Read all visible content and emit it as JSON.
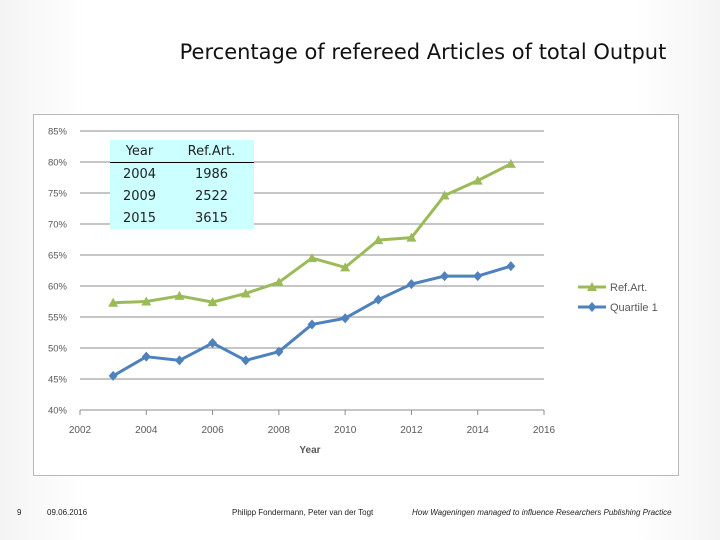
{
  "slide": {
    "title": "Percentage of refereed Articles of total Output",
    "footer": {
      "page": "9",
      "date": "09.06.2016",
      "authors": "Philipp Fondermann, Peter van der Togt",
      "talk": "How Wageningen managed to influence Researchers Publishing Practice"
    }
  },
  "table": {
    "headers": [
      "Year",
      "Ref.Art."
    ],
    "rows": [
      [
        "2004",
        "1986"
      ],
      [
        "2009",
        "2522"
      ],
      [
        "2015",
        "3615"
      ]
    ],
    "background": "#ccffff"
  },
  "chart_data": {
    "type": "line",
    "xlabel": "Year",
    "ylabel": "",
    "xlim": [
      2002,
      2016
    ],
    "ylim": [
      0.4,
      0.85
    ],
    "x_ticks": [
      "2002",
      "2004",
      "2006",
      "2008",
      "2010",
      "2012",
      "2014",
      "2016"
    ],
    "x_tick_values": [
      2002,
      2004,
      2006,
      2008,
      2010,
      2012,
      2014,
      2016
    ],
    "y_ticks": [
      "40%",
      "45%",
      "50%",
      "55%",
      "60%",
      "65%",
      "70%",
      "75%",
      "80%",
      "85%"
    ],
    "y_tick_values": [
      0.4,
      0.45,
      0.5,
      0.55,
      0.6,
      0.65,
      0.7,
      0.75,
      0.8,
      0.85
    ],
    "grid": "horizontal",
    "legend_position": "right",
    "series": [
      {
        "name": "Ref.Art.",
        "color": "#9bbb59",
        "marker": "triangle",
        "x": [
          2003,
          2004,
          2005,
          2006,
          2007,
          2008,
          2009,
          2010,
          2011,
          2012,
          2013,
          2014,
          2015
        ],
        "y": [
          0.573,
          0.575,
          0.584,
          0.574,
          0.588,
          0.606,
          0.645,
          0.63,
          0.674,
          0.678,
          0.746,
          0.77,
          0.797
        ]
      },
      {
        "name": "Quartile 1",
        "color": "#4f81bd",
        "marker": "diamond",
        "x": [
          2003,
          2004,
          2005,
          2006,
          2007,
          2008,
          2009,
          2010,
          2011,
          2012,
          2013,
          2014,
          2015
        ],
        "y": [
          0.455,
          0.486,
          0.48,
          0.508,
          0.48,
          0.494,
          0.538,
          0.548,
          0.578,
          0.603,
          0.616,
          0.616,
          0.632
        ]
      }
    ]
  }
}
